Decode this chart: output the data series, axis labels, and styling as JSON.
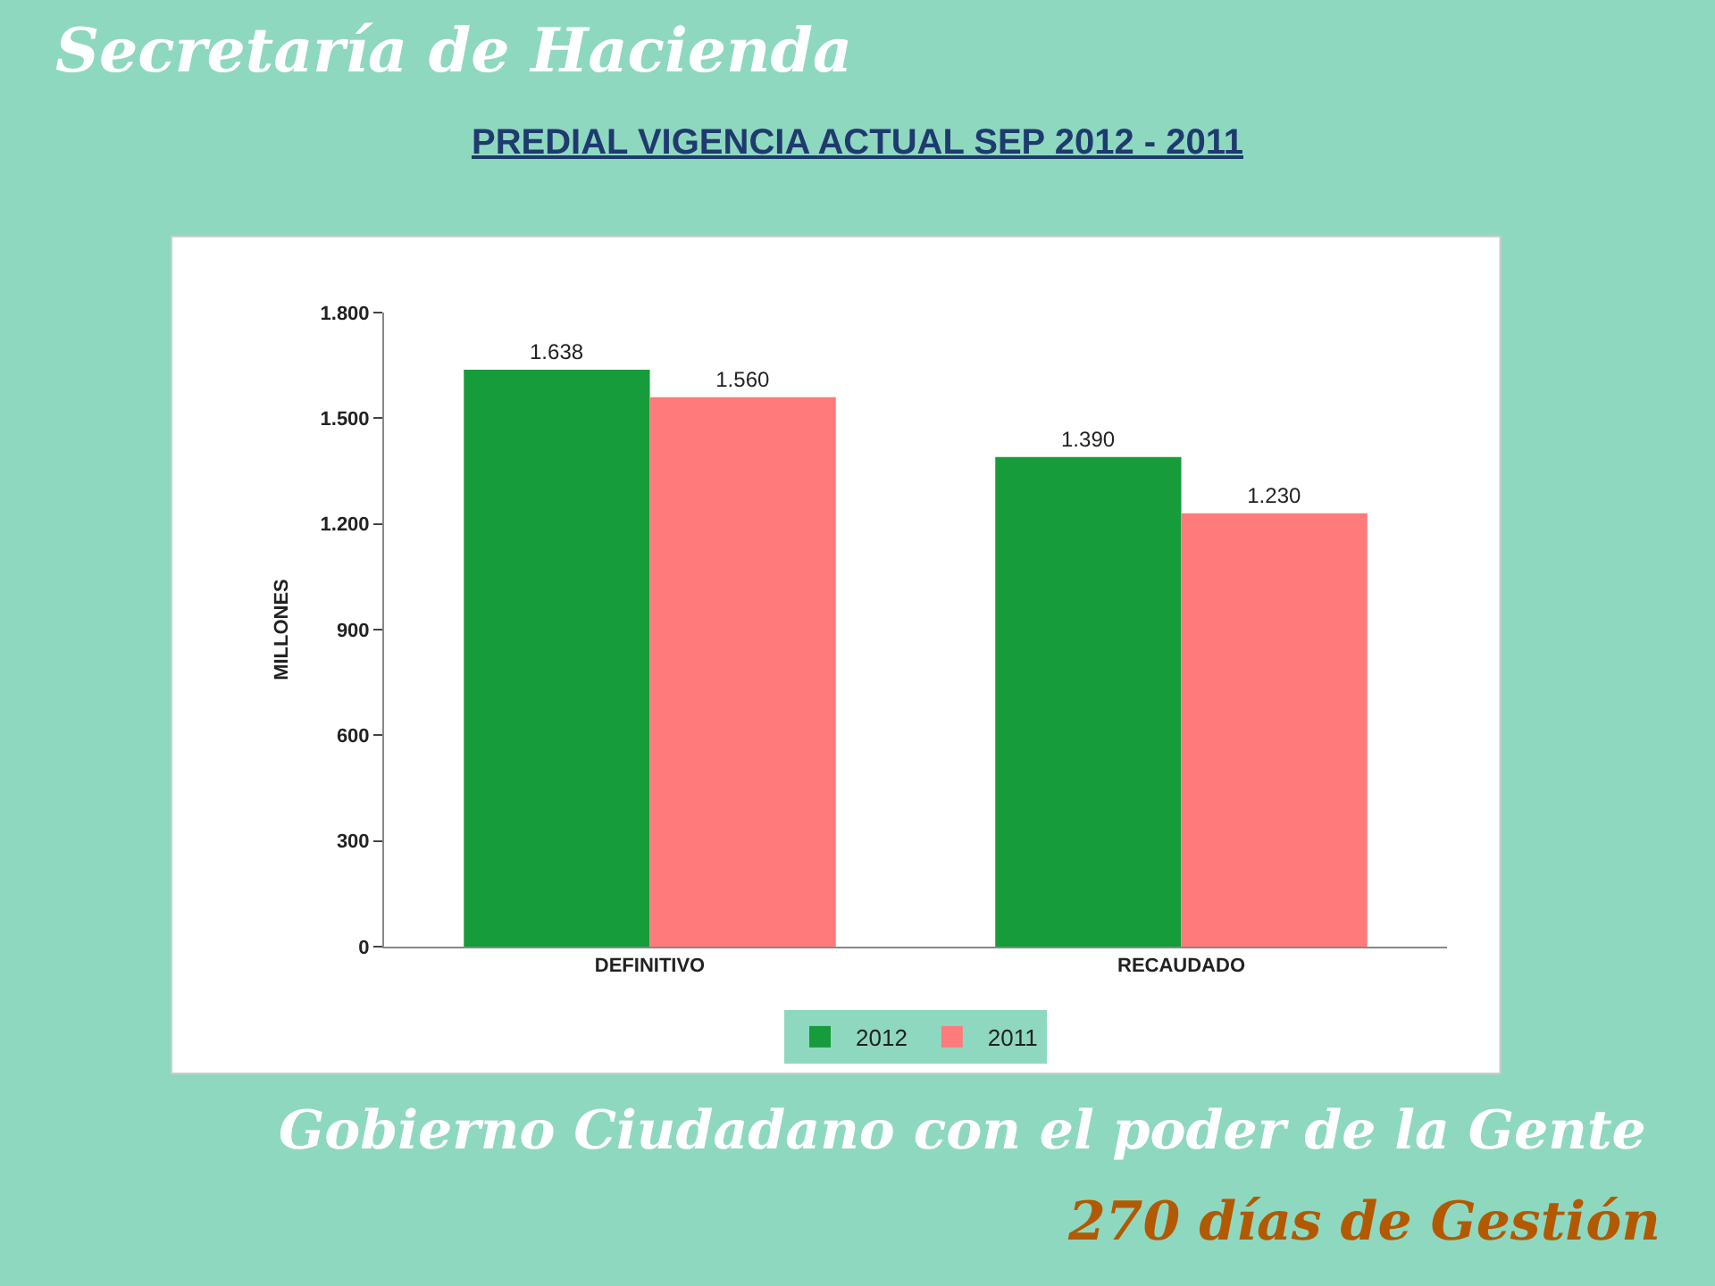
{
  "chart_data": {
    "type": "bar",
    "title": "PREDIAL VIGENCIA ACTUAL SEP 2012 - 2011",
    "ylabel": "MILLONES",
    "categories": [
      "DEFINITIVO",
      "RECAUDADO"
    ],
    "series": [
      {
        "name": "2012",
        "color": "#169c3a",
        "values": [
          1638,
          1390
        ],
        "value_labels": [
          "1.638",
          "1.390"
        ]
      },
      {
        "name": "2011",
        "color": "#ff7b7b",
        "values": [
          1560,
          1230
        ],
        "value_labels": [
          "1.560",
          "1.230"
        ]
      }
    ],
    "ylim": [
      0,
      1800
    ],
    "yticks": [
      0,
      300,
      600,
      900,
      {
        "value": 1200,
        "label": "1.200"
      },
      {
        "value": 1500,
        "label": "1.500"
      },
      {
        "value": 1800,
        "label": "1.800"
      }
    ],
    "legend": "bottom",
    "annotations": [
      "Secretaría de Hacienda",
      "Gobierno Ciudadano con el poder de la Gente",
      "270 días de Gestión"
    ]
  }
}
